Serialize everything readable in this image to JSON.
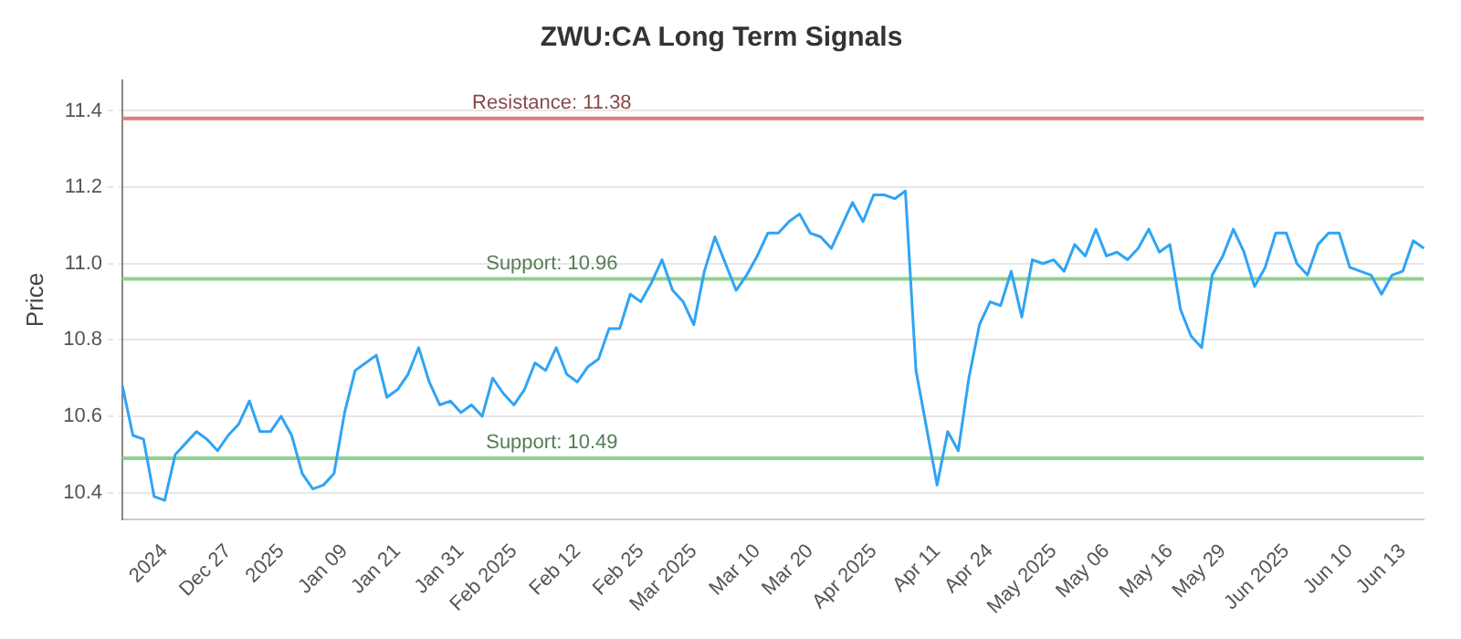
{
  "chart_data": {
    "type": "line",
    "title": "ZWU:CA Long Term Signals",
    "ylabel": "Price",
    "categories": [
      null,
      null,
      null,
      null,
      "2024",
      null,
      null,
      null,
      null,
      null,
      "Dec 27",
      null,
      null,
      null,
      null,
      "2025",
      null,
      null,
      null,
      null,
      null,
      "Jan 09",
      null,
      null,
      null,
      null,
      "Jan 21",
      null,
      null,
      null,
      null,
      null,
      "Jan 31",
      null,
      null,
      null,
      null,
      "Feb 2025",
      null,
      null,
      null,
      null,
      null,
      "Feb 12",
      null,
      null,
      null,
      null,
      null,
      "Feb 25",
      null,
      null,
      null,
      null,
      "Mar 2025",
      null,
      null,
      null,
      null,
      null,
      "Mar 10",
      null,
      null,
      null,
      null,
      "Mar 20",
      null,
      null,
      null,
      null,
      null,
      "Apr 2025",
      null,
      null,
      null,
      null,
      null,
      "Apr 11",
      null,
      null,
      null,
      null,
      "Apr 24",
      null,
      null,
      null,
      null,
      null,
      "May 2025",
      null,
      null,
      null,
      null,
      "May 06",
      null,
      null,
      null,
      null,
      null,
      "May 16",
      null,
      null,
      null,
      null,
      "May 29",
      null,
      null,
      null,
      null,
      null,
      "Jun 2025",
      null,
      null,
      null,
      null,
      null,
      "Jun 10",
      null,
      null,
      null,
      null,
      "Jun 13",
      null,
      null
    ],
    "series": [
      {
        "color": "#2fa4f4",
        "values": [
          10.68,
          10.55,
          10.54,
          10.39,
          10.38,
          10.5,
          10.53,
          10.56,
          10.54,
          10.51,
          10.55,
          10.58,
          10.64,
          10.56,
          10.56,
          10.6,
          10.55,
          10.45,
          10.41,
          10.42,
          10.45,
          10.61,
          10.72,
          10.74,
          10.76,
          10.65,
          10.67,
          10.71,
          10.78,
          10.69,
          10.63,
          10.64,
          10.61,
          10.63,
          10.6,
          10.7,
          10.66,
          10.63,
          10.67,
          10.74,
          10.72,
          10.78,
          10.71,
          10.69,
          10.73,
          10.75,
          10.83,
          10.83,
          10.92,
          10.9,
          10.95,
          11.01,
          10.93,
          10.9,
          10.84,
          10.98,
          11.07,
          11.0,
          10.93,
          10.97,
          11.02,
          11.08,
          11.08,
          11.11,
          11.13,
          11.08,
          11.07,
          11.04,
          11.1,
          11.16,
          11.11,
          11.18,
          11.18,
          11.17,
          11.19,
          10.72,
          10.57,
          10.42,
          10.56,
          10.51,
          10.7,
          10.84,
          10.9,
          10.89,
          10.98,
          10.86,
          11.01,
          11.0,
          11.01,
          10.98,
          11.05,
          11.02,
          11.09,
          11.02,
          11.03,
          11.01,
          11.04,
          11.09,
          11.03,
          11.05,
          10.88,
          10.81,
          10.78,
          10.97,
          11.02,
          11.09,
          11.03,
          10.94,
          10.99,
          11.08,
          11.08,
          11.0,
          10.97,
          11.05,
          11.08,
          11.08,
          10.99,
          10.98,
          10.97,
          10.92,
          10.97,
          10.98,
          11.06,
          11.04
        ]
      }
    ],
    "ylim": [
      10.33,
      11.48
    ],
    "yticks": [
      10.4,
      10.6,
      10.8,
      {
        "value": 11,
        "label": "11.0"
      },
      11.2,
      11.4
    ],
    "grid": "y",
    "marker": "none",
    "line_style": "solid",
    "legend": false,
    "ref_lines": [
      {
        "axis": "y",
        "value": 11.38,
        "label": "Resistance: 11.38",
        "color": "#e07c7c"
      },
      {
        "axis": "y",
        "value": 10.96,
        "label": "Support: 10.96",
        "color": "#8fd18f"
      },
      {
        "axis": "y",
        "value": 10.49,
        "label": "Support: 10.49",
        "color": "#8fd18f"
      }
    ]
  }
}
